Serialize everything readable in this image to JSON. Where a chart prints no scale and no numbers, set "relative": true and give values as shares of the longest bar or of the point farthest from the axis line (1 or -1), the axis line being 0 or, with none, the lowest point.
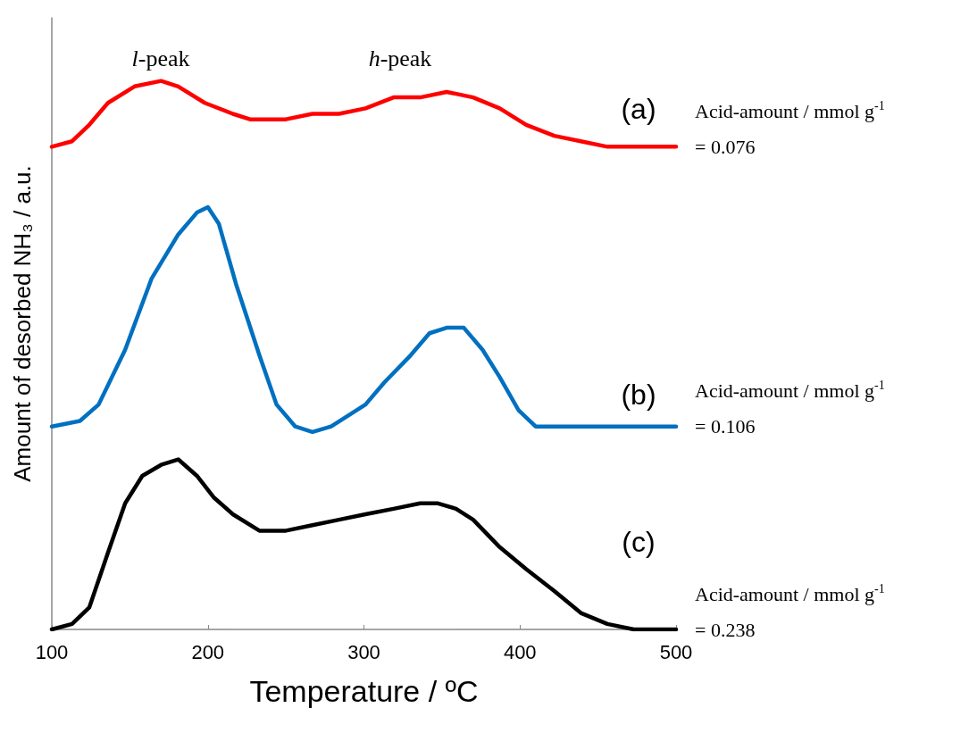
{
  "chart_data": {
    "type": "line",
    "relative": true,
    "xlabel": "Temperature / ºC",
    "ylabel": "Amount of desorbed NH₃ / a.u.",
    "xlim": [
      100,
      500
    ],
    "xticks": [
      100,
      200,
      300,
      400,
      500
    ],
    "grid": false,
    "marker": "none",
    "line_style": "solid",
    "series": [
      {
        "color": "#ff0000",
        "x": [
          100,
          113,
          124,
          136,
          153,
          170,
          181,
          198,
          216,
          227,
          250,
          267,
          284,
          301,
          319,
          336,
          353,
          370,
          387,
          404,
          422,
          439,
          456,
          500
        ],
        "values": [
          0.88,
          0.89,
          0.92,
          0.96,
          0.99,
          1,
          0.99,
          0.96,
          0.94,
          0.93,
          0.93,
          0.94,
          0.94,
          0.95,
          0.97,
          0.97,
          0.98,
          0.97,
          0.95,
          0.92,
          0.9,
          0.89,
          0.88,
          0.88
        ]
      },
      {
        "color": "#0070c0",
        "x": [
          100,
          118,
          130,
          147,
          164,
          181,
          193,
          200,
          207,
          218,
          233,
          244,
          256,
          267,
          279,
          290,
          301,
          313,
          330,
          342,
          353,
          364,
          376,
          387,
          399,
          410,
          427,
          445,
          500
        ],
        "values": [
          0.37,
          0.38,
          0.41,
          0.51,
          0.64,
          0.72,
          0.76,
          0.77,
          0.74,
          0.63,
          0.5,
          0.41,
          0.37,
          0.36,
          0.37,
          0.39,
          0.41,
          0.45,
          0.5,
          0.54,
          0.55,
          0.55,
          0.51,
          0.46,
          0.4,
          0.37,
          0.37,
          0.37,
          0.37
        ]
      },
      {
        "color": "#000000",
        "x": [
          100,
          113,
          124,
          136,
          147,
          158,
          170,
          181,
          193,
          204,
          216,
          233,
          250,
          267,
          284,
          301,
          319,
          336,
          347,
          359,
          370,
          387,
          404,
          422,
          439,
          456,
          473,
          500
        ],
        "values": [
          0,
          0.01,
          0.04,
          0.14,
          0.23,
          0.28,
          0.3,
          0.31,
          0.28,
          0.24,
          0.21,
          0.18,
          0.18,
          0.19,
          0.2,
          0.21,
          0.22,
          0.23,
          0.23,
          0.22,
          0.2,
          0.15,
          0.11,
          0.07,
          0.03,
          0.01,
          0,
          0
        ]
      }
    ],
    "annotations": [
      "l-peak",
      "h-peak",
      "(a)",
      "(b)",
      "(c)",
      "Acid-amount / mmol g$^{-1}$\n= 0.076",
      "Acid-amount / mmol g$^{-1}$\n= 0.106",
      "Acid-amount / mmol g$^{-1}$\n= 0.238"
    ]
  }
}
